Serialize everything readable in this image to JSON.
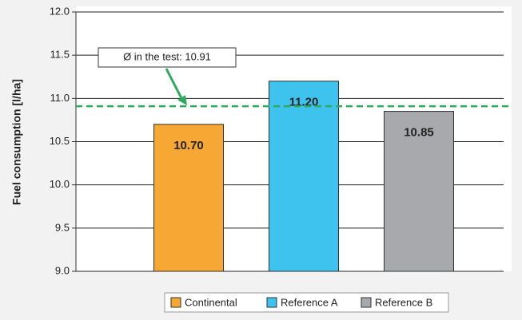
{
  "chart_data": {
    "type": "bar",
    "y_label": "Fuel consumption [l/ha]",
    "categories": [
      "Continental",
      "Reference A",
      "Reference B"
    ],
    "values": [
      10.7,
      11.2,
      10.85
    ],
    "value_labels": [
      "10.70",
      "11.20",
      "10.85"
    ],
    "colors": [
      "#f7a733",
      "#3ec3ee",
      "#a7a9ac"
    ],
    "ylim": [
      9,
      12
    ],
    "yticks": [
      {
        "value": 9,
        "label": "9.0"
      },
      9.5,
      {
        "value": 10,
        "label": "10.0"
      },
      10.5,
      {
        "value": 11,
        "label": "11.0"
      },
      11.5,
      {
        "value": 12,
        "label": "12.0"
      }
    ],
    "grid": true,
    "reference_line": {
      "value": 10.91,
      "label": "Ø in the test: 10.91",
      "color": "#2eaa5c"
    },
    "legend": "bottom"
  }
}
